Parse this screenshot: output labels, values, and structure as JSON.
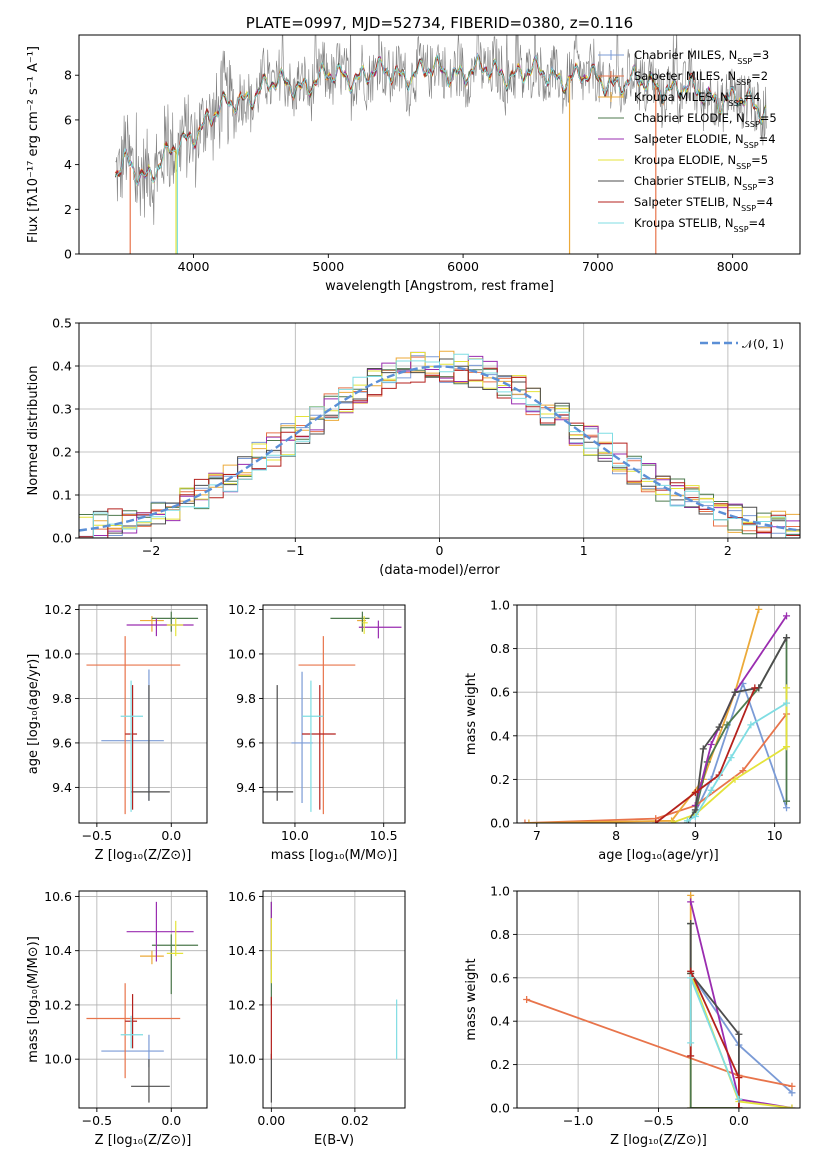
{
  "colors": {
    "Chabrier MILES": "#7b9bd6",
    "Salpeter MILES": "#e8744b",
    "Kroupa MILES": "#ecaa3a",
    "Chabrier ELODIE": "#4e7a4e",
    "Salpeter ELODIE": "#9a2db0",
    "Kroupa ELODIE": "#e4e33a",
    "Chabrier STELIB": "#4d4d4d",
    "Salpeter STELIB": "#b4211d",
    "Kroupa STELIB": "#7fdde3",
    "normal": "#5b8fd6"
  },
  "chart_data": [
    {
      "id": "spectrum",
      "type": "line",
      "title": "PLATE=0997, MJD=52734, FIBERID=0380, z=0.116",
      "xlabel": "wavelength [Angstrom, rest frame]",
      "ylabel": "Flux [fλ10⁻¹⁷ erg cm⁻² s⁻¹ A⁻¹]",
      "xlim": [
        3150,
        8500
      ],
      "ylim": [
        0,
        9.8
      ],
      "xticks": [
        4000,
        5000,
        6000,
        7000,
        8000
      ],
      "yticks": [
        0,
        2,
        4,
        6,
        8
      ],
      "legend_loc": "lower right",
      "legend": [
        {
          "model": "Chabrier MILES",
          "label": "Chabrier MILES, N",
          "n": "=3"
        },
        {
          "model": "Salpeter MILES",
          "label": "Salpeter MILES, N",
          "n": "=2"
        },
        {
          "model": "Kroupa MILES",
          "label": "Kroupa MILES, N",
          "n": "=4"
        },
        {
          "model": "Chabrier ELODIE",
          "label": "Chabrier ELODIE, N",
          "n": "=5"
        },
        {
          "model": "Salpeter ELODIE",
          "label": "Salpeter ELODIE, N",
          "n": "=4"
        },
        {
          "model": "Kroupa ELODIE",
          "label": "Kroupa ELODIE, N",
          "n": "=5"
        },
        {
          "model": "Chabrier STELIB",
          "label": "Chabrier STELIB, N",
          "n": "=3"
        },
        {
          "model": "Salpeter STELIB",
          "label": "Salpeter STELIB, N",
          "n": "=4"
        },
        {
          "model": "Kroupa STELIB",
          "label": "Kroupa STELIB, N",
          "n": "=4"
        }
      ],
      "continuum_x": [
        3400,
        3500,
        3550,
        3650,
        3800,
        3950,
        4100,
        4300,
        4500,
        4800,
        5100,
        5500,
        6000,
        6500,
        7000,
        7500,
        8000,
        8250
      ],
      "continuum_y": [
        3.4,
        4.0,
        3.8,
        3.6,
        4.3,
        5.1,
        6.1,
        6.7,
        7.5,
        7.6,
        8.0,
        8.1,
        8.2,
        8.1,
        7.8,
        7.5,
        6.9,
        6.5
      ],
      "data_range": [
        3420,
        8250
      ],
      "drops": [
        {
          "x": 3530,
          "model": "Salpeter MILES"
        },
        {
          "x": 3870,
          "model": "Kroupa ELODIE"
        },
        {
          "x": 3880,
          "model": "Kroupa STELIB"
        },
        {
          "x": 6790,
          "model": "Kroupa MILES"
        },
        {
          "x": 7430,
          "model": "Salpeter MILES"
        }
      ]
    },
    {
      "id": "residuals",
      "type": "histogram",
      "xlabel": "(data-model)/error",
      "ylabel": "Normed distribution",
      "xlim": [
        -2.5,
        2.5
      ],
      "ylim": [
        0,
        0.5
      ],
      "xticks": [
        -2,
        -1,
        0,
        1,
        2
      ],
      "yticks": [
        0.0,
        0.1,
        0.2,
        0.3,
        0.4,
        0.5
      ],
      "bin_width": 0.1,
      "legend_loc": "upper right",
      "normal_label": "𝒩(0, 1)",
      "normal": {
        "mu": 0,
        "sigma": 1
      }
    },
    {
      "id": "age-vs-Z",
      "type": "errorbar",
      "xlabel": "Z [log₁₀(Z/Z⊙)]",
      "ylabel": "age  [log₁₀(age/yr)]",
      "xlim": [
        -0.62,
        0.24
      ],
      "ylim": [
        9.24,
        10.22
      ],
      "xticks": [
        -0.5,
        0.0
      ],
      "yticks": [
        9.4,
        9.6,
        9.8,
        10.0,
        10.2
      ],
      "points": [
        {
          "model": "Chabrier MILES",
          "x": -0.15,
          "xerr": [
            0.32,
            0.1
          ],
          "y": 9.61,
          "yerr": [
            0.27,
            0.32
          ]
        },
        {
          "model": "Salpeter MILES",
          "x": -0.31,
          "xerr": [
            0.26,
            0.37
          ],
          "y": 9.95,
          "yerr": [
            0.67,
            0.13
          ]
        },
        {
          "model": "Kroupa MILES",
          "x": -0.13,
          "xerr": [
            0.08,
            0.08
          ],
          "y": 10.15,
          "yerr": [
            0.05,
            0.02
          ]
        },
        {
          "model": "Chabrier ELODIE",
          "x": 0.0,
          "xerr": [
            0.13,
            0.18
          ],
          "y": 10.16,
          "yerr": [
            0.06,
            0.03
          ]
        },
        {
          "model": "Salpeter ELODIE",
          "x": -0.1,
          "xerr": [
            0.2,
            0.25
          ],
          "y": 10.13,
          "yerr": [
            0.05,
            0.03
          ]
        },
        {
          "model": "Kroupa ELODIE",
          "x": 0.03,
          "xerr": [
            0.06,
            0.05
          ],
          "y": 10.13,
          "yerr": [
            0.05,
            0.03
          ]
        },
        {
          "model": "Chabrier STELIB",
          "x": -0.15,
          "xerr": [
            0.12,
            0.14
          ],
          "y": 9.38,
          "yerr": [
            0.04,
            0.48
          ]
        },
        {
          "model": "Salpeter STELIB",
          "x": -0.26,
          "xerr": [
            0.05,
            0.03
          ],
          "y": 9.64,
          "yerr": [
            0.34,
            0.22
          ]
        },
        {
          "model": "Kroupa STELIB",
          "x": -0.27,
          "xerr": [
            0.07,
            0.08
          ],
          "y": 9.72,
          "yerr": [
            0.43,
            0.16
          ]
        }
      ]
    },
    {
      "id": "age-vs-mass",
      "type": "errorbar",
      "xlabel": "mass [log₁₀(M/M⊙)]",
      "ylabel": "",
      "xlim": [
        9.82,
        10.62
      ],
      "ylim": [
        9.24,
        10.22
      ],
      "xticks": [
        10.0,
        10.5
      ],
      "yticks": [
        9.4,
        9.6,
        9.8,
        10.0,
        10.2
      ],
      "points": [
        {
          "model": "Chabrier MILES",
          "x": 10.04,
          "xerr": [
            0.06,
            0.06
          ],
          "y": 9.6,
          "yerr": [
            0.27,
            0.32
          ]
        },
        {
          "model": "Salpeter MILES",
          "x": 10.16,
          "xerr": [
            0.14,
            0.18
          ],
          "y": 9.95,
          "yerr": [
            0.67,
            0.13
          ]
        },
        {
          "model": "Kroupa MILES",
          "x": 10.38,
          "xerr": [
            0.03,
            0.02
          ],
          "y": 10.15,
          "yerr": [
            0.05,
            0.02
          ]
        },
        {
          "model": "Chabrier ELODIE",
          "x": 10.38,
          "xerr": [
            0.18,
            0.04
          ],
          "y": 10.16,
          "yerr": [
            0.06,
            0.03
          ]
        },
        {
          "model": "Salpeter ELODIE",
          "x": 10.47,
          "xerr": [
            0.11,
            0.13
          ],
          "y": 10.12,
          "yerr": [
            0.05,
            0.03
          ]
        },
        {
          "model": "Kroupa ELODIE",
          "x": 10.39,
          "xerr": [
            0.01,
            0.02
          ],
          "y": 10.14,
          "yerr": [
            0.05,
            0.03
          ]
        },
        {
          "model": "Chabrier STELIB",
          "x": 9.9,
          "xerr": [
            0.09,
            0.09
          ],
          "y": 9.38,
          "yerr": [
            0.04,
            0.48
          ]
        },
        {
          "model": "Salpeter STELIB",
          "x": 10.14,
          "xerr": [
            0.1,
            0.09
          ],
          "y": 9.64,
          "yerr": [
            0.34,
            0.22
          ]
        },
        {
          "model": "Kroupa STELIB",
          "x": 10.09,
          "xerr": [
            0.05,
            0.07
          ],
          "y": 9.72,
          "yerr": [
            0.43,
            0.16
          ]
        }
      ]
    },
    {
      "id": "weight-vs-age",
      "type": "line",
      "xlabel": "age  [log₁₀(age/yr)]",
      "ylabel": "mass weight",
      "xlim": [
        6.75,
        10.32
      ],
      "ylim": [
        0,
        1.0
      ],
      "xticks": [
        7,
        8,
        9,
        10
      ],
      "yticks": [
        0.0,
        0.2,
        0.4,
        0.6,
        0.8,
        1.0
      ],
      "series": [
        {
          "model": "Chabrier MILES",
          "x": [
            8.9,
            9.0,
            9.2,
            9.6,
            10.15
          ],
          "y": [
            0.0,
            0.05,
            0.2,
            0.64,
            0.07
          ]
        },
        {
          "model": "Salpeter MILES",
          "x": [
            6.85,
            8.5,
            9.0,
            9.6,
            10.15
          ],
          "y": [
            0.0,
            0.02,
            0.08,
            0.24,
            0.5
          ]
        },
        {
          "model": "Kroupa MILES",
          "x": [
            6.9,
            8.7,
            9.1,
            9.5,
            9.8
          ],
          "y": [
            0.0,
            0.01,
            0.2,
            0.6,
            0.98
          ]
        },
        {
          "model": "Chabrier ELODIE",
          "x": [
            9.0,
            9.15,
            9.4,
            9.8,
            10.15,
            10.15
          ],
          "y": [
            0.05,
            0.28,
            0.45,
            0.62,
            0.85,
            0.1
          ]
        },
        {
          "model": "Salpeter ELODIE",
          "x": [
            9.0,
            9.2,
            9.5,
            10.15
          ],
          "y": [
            0.08,
            0.36,
            0.6,
            0.95
          ]
        },
        {
          "model": "Kroupa ELODIE",
          "x": [
            8.7,
            9.0,
            9.5,
            10.15,
            10.15
          ],
          "y": [
            0.0,
            0.04,
            0.2,
            0.35,
            0.62
          ]
        },
        {
          "model": "Chabrier STELIB",
          "x": [
            8.9,
            9.0,
            9.1,
            9.3,
            9.5,
            9.8,
            10.15
          ],
          "y": [
            0.0,
            0.06,
            0.34,
            0.44,
            0.6,
            0.62,
            0.85
          ]
        },
        {
          "model": "Salpeter STELIB",
          "x": [
            8.5,
            9.0,
            9.3,
            9.75
          ],
          "y": [
            0.0,
            0.14,
            0.22,
            0.62
          ]
        },
        {
          "model": "Kroupa STELIB",
          "x": [
            8.9,
            9.0,
            9.2,
            9.45,
            9.7,
            10.15
          ],
          "y": [
            0.01,
            0.03,
            0.15,
            0.3,
            0.45,
            0.55
          ]
        }
      ]
    },
    {
      "id": "mass-vs-Z",
      "type": "errorbar",
      "xlabel": "Z [log₁₀(Z/Z⊙)]",
      "ylabel": "mass [log₁₀(M/M⊙)]",
      "xlim": [
        -0.62,
        0.24
      ],
      "ylim": [
        9.82,
        10.62
      ],
      "xticks": [
        -0.5,
        0.0
      ],
      "yticks": [
        10.0,
        10.2,
        10.4,
        10.6
      ],
      "points": [
        {
          "model": "Chabrier MILES",
          "x": -0.15,
          "xerr": [
            0.32,
            0.1
          ],
          "y": 10.03,
          "yerr": [
            0.06,
            0.06
          ]
        },
        {
          "model": "Salpeter MILES",
          "x": -0.31,
          "xerr": [
            0.26,
            0.37
          ],
          "y": 10.15,
          "yerr": [
            0.22,
            0.13
          ]
        },
        {
          "model": "Kroupa MILES",
          "x": -0.13,
          "xerr": [
            0.08,
            0.08
          ],
          "y": 10.38,
          "yerr": [
            0.03,
            0.02
          ]
        },
        {
          "model": "Chabrier ELODIE",
          "x": 0.0,
          "xerr": [
            0.13,
            0.18
          ],
          "y": 10.42,
          "yerr": [
            0.18,
            0.04
          ]
        },
        {
          "model": "Salpeter ELODIE",
          "x": -0.1,
          "xerr": [
            0.2,
            0.25
          ],
          "y": 10.47,
          "yerr": [
            0.11,
            0.11
          ]
        },
        {
          "model": "Kroupa ELODIE",
          "x": 0.03,
          "xerr": [
            0.06,
            0.05
          ],
          "y": 10.39,
          "yerr": [
            0.01,
            0.12
          ]
        },
        {
          "model": "Chabrier STELIB",
          "x": -0.15,
          "xerr": [
            0.12,
            0.14
          ],
          "y": 9.9,
          "yerr": [
            0.06,
            0.1
          ]
        },
        {
          "model": "Salpeter STELIB",
          "x": -0.26,
          "xerr": [
            0.05,
            0.03
          ],
          "y": 10.14,
          "yerr": [
            0.1,
            0.1
          ]
        },
        {
          "model": "Kroupa STELIB",
          "x": -0.27,
          "xerr": [
            0.07,
            0.08
          ],
          "y": 10.09,
          "yerr": [
            0.05,
            0.07
          ]
        }
      ]
    },
    {
      "id": "mass-vs-ebv",
      "type": "errorbar",
      "xlabel": "E(B-V)",
      "ylabel": "",
      "xlim": [
        -0.002,
        0.032
      ],
      "ylim": [
        9.82,
        10.62
      ],
      "xticks": [
        0.0,
        0.02
      ],
      "yticks": [
        10.0,
        10.2,
        10.4,
        10.6
      ],
      "points": [
        {
          "model": "Chabrier ELODIE",
          "x": 0.0,
          "y": 10.4,
          "yerr": [
            0.2,
            0.18
          ]
        },
        {
          "model": "Salpeter ELODIE",
          "x": 0.0,
          "y": 10.45,
          "yerr": [
            0.12,
            0.13
          ]
        },
        {
          "model": "Kroupa ELODIE",
          "x": 0.0,
          "y": 10.38,
          "yerr": [
            0.1,
            0.14
          ]
        },
        {
          "model": "Chabrier STELIB",
          "x": 0.0,
          "y": 9.9,
          "yerr": [
            0.06,
            0.12
          ]
        },
        {
          "model": "Salpeter STELIB",
          "x": 0.0,
          "y": 10.14,
          "yerr": [
            0.14,
            0.09
          ]
        },
        {
          "model": "Kroupa STELIB",
          "x": 0.03,
          "y": 10.1,
          "yerr": [
            0.1,
            0.12
          ]
        }
      ]
    },
    {
      "id": "weight-vs-Z",
      "type": "line",
      "xlabel": "Z [log₁₀(Z/Z⊙)]",
      "ylabel": "mass weight",
      "xlim": [
        -1.38,
        0.38
      ],
      "ylim": [
        0,
        1.0
      ],
      "xticks": [
        -1.0,
        -0.5,
        0.0
      ],
      "yticks": [
        0.0,
        0.2,
        0.4,
        0.6,
        0.8,
        1.0
      ],
      "series": [
        {
          "model": "Chabrier MILES",
          "x": [
            -0.3,
            0.0,
            0.33
          ],
          "y": [
            0.62,
            0.29,
            0.07
          ]
        },
        {
          "model": "Salpeter MILES",
          "x": [
            -1.32,
            0.0,
            0.33
          ],
          "y": [
            0.5,
            0.15,
            0.1
          ]
        },
        {
          "model": "Kroupa MILES",
          "x": [
            -0.3,
            -0.3,
            0.0
          ],
          "y": [
            0.98,
            0.0,
            0.0
          ]
        },
        {
          "model": "Chabrier ELODIE",
          "x": [
            -0.3,
            -0.3,
            0.0
          ],
          "y": [
            0.85,
            0.0,
            0.0
          ]
        },
        {
          "model": "Salpeter ELODIE",
          "x": [
            -0.3,
            0.0,
            0.33
          ],
          "y": [
            0.95,
            0.04,
            0.0
          ]
        },
        {
          "model": "Kroupa ELODIE",
          "x": [
            -0.3,
            0.0,
            0.33
          ],
          "y": [
            0.62,
            0.03,
            0.0
          ]
        },
        {
          "model": "Chabrier STELIB",
          "x": [
            -0.3,
            -0.3,
            0.0,
            0.0
          ],
          "y": [
            0.85,
            0.62,
            0.34,
            0.0
          ]
        },
        {
          "model": "Salpeter STELIB",
          "x": [
            -0.3,
            -0.3,
            0.0,
            0.0
          ],
          "y": [
            0.24,
            0.63,
            0.14,
            0.0
          ]
        },
        {
          "model": "Kroupa STELIB",
          "x": [
            -0.3,
            -0.3,
            0.0
          ],
          "y": [
            0.3,
            0.6,
            0.04
          ]
        }
      ]
    }
  ]
}
